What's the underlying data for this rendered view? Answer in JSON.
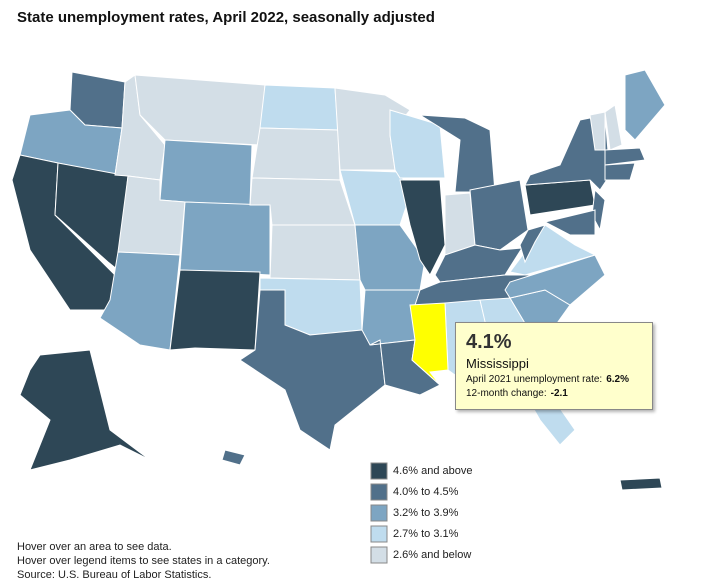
{
  "title": "State unemployment rates, April 2022, seasonally adjusted",
  "legend": {
    "items": [
      {
        "label": "4.6% and above",
        "color": "#2e4756"
      },
      {
        "label": "4.0% to 4.5%",
        "color": "#51708a"
      },
      {
        "label": "3.2% to 3.9%",
        "color": "#7da5c2"
      },
      {
        "label": "2.7% to 3.1%",
        "color": "#bfdcee"
      },
      {
        "label": "2.6% and below",
        "color": "#d3dee6"
      }
    ]
  },
  "highlight_color": "#ffff00",
  "tooltip": {
    "value": "4.1%",
    "state": "Mississippi",
    "prior_label": "April 2021 unemployment rate:",
    "prior_value": "6.2%",
    "change_label": "12-month change:",
    "change_value": "-2.1"
  },
  "notes": [
    "Hover over an area to see data.",
    "Hover over legend items to see states in a category.",
    "Source: U.S. Bureau of Labor Statistics."
  ]
}
